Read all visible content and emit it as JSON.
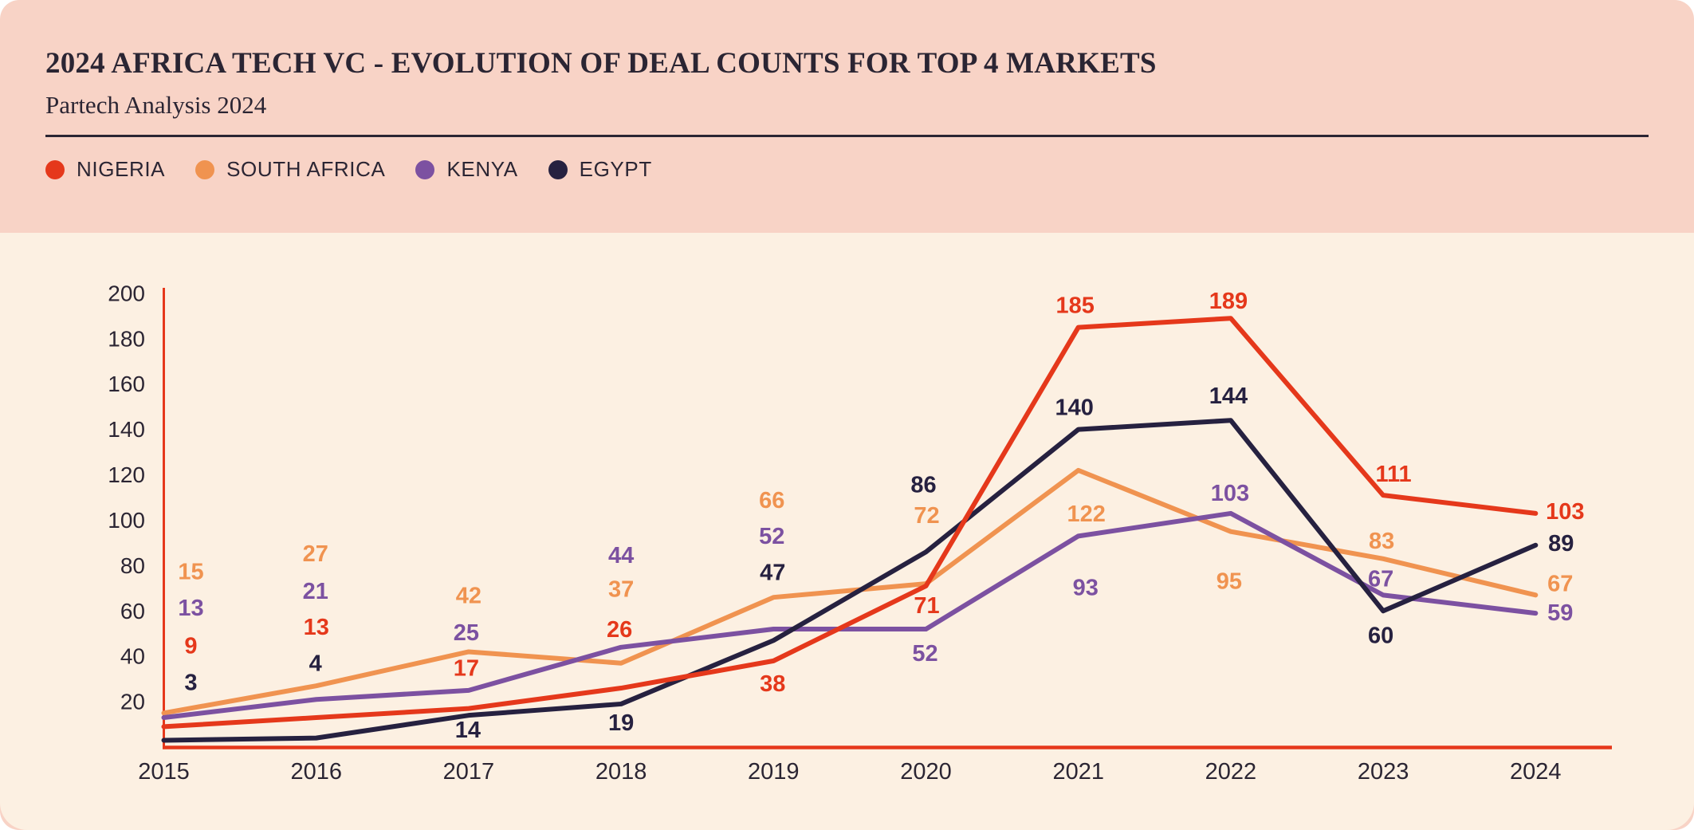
{
  "header": {
    "title": "2024 AFRICA TECH VC - EVOLUTION OF DEAL COUNTS FOR TOP 4 MARKETS",
    "subtitle": "Partech Analysis 2024"
  },
  "legend": [
    {
      "label": "NIGERIA",
      "color": "#e5381b"
    },
    {
      "label": "SOUTH AFRICA",
      "color": "#f09350"
    },
    {
      "label": "KENYA",
      "color": "#7c51a1"
    },
    {
      "label": "EGYPT",
      "color": "#262140"
    }
  ],
  "colors": {
    "card_background": "#f8d3c6",
    "chart_background": "#fcf0e2",
    "axis": "#e5381b",
    "text": "#2b2533",
    "rule": "#2b2533"
  },
  "chart_data": {
    "type": "line",
    "title": "2024 AFRICA TECH VC - EVOLUTION OF DEAL COUNTS FOR TOP 4 MARKETS",
    "subtitle": "Partech Analysis 2024",
    "x": [
      2015,
      2016,
      2017,
      2018,
      2019,
      2020,
      2021,
      2022,
      2023,
      2024
    ],
    "series": [
      {
        "name": "NIGERIA",
        "color": "#e5381b",
        "values": [
          9,
          13,
          17,
          26,
          38,
          71,
          185,
          189,
          111,
          103
        ]
      },
      {
        "name": "SOUTH AFRICA",
        "color": "#f09350",
        "values": [
          15,
          27,
          42,
          37,
          66,
          72,
          122,
          95,
          83,
          67
        ]
      },
      {
        "name": "KENYA",
        "color": "#7c51a1",
        "values": [
          13,
          21,
          25,
          44,
          52,
          52,
          93,
          103,
          67,
          59
        ]
      },
      {
        "name": "EGYPT",
        "color": "#262140",
        "values": [
          3,
          4,
          14,
          19,
          47,
          86,
          140,
          144,
          60,
          89
        ]
      }
    ],
    "ylim": [
      0,
      200
    ],
    "yticks": [
      20,
      40,
      60,
      80,
      100,
      120,
      140,
      160,
      180,
      200
    ],
    "grid": false,
    "legend_position": "top",
    "axis_color": "#e5381b",
    "layout_hints": {
      "draw_order": [
        1,
        2,
        3,
        0
      ],
      "label_offsets": {
        "NIGERIA": [
          [
            34,
            -101
          ],
          [
            0,
            -113
          ],
          [
            -3,
            -50
          ],
          [
            -2,
            -73
          ],
          [
            -1,
            29
          ],
          [
            1,
            25
          ],
          [
            -4,
            -27
          ],
          [
            -3,
            -21
          ],
          [
            13,
            -26
          ],
          [
            37,
            -2
          ]
        ],
        "SOUTH AFRICA": [
          [
            34,
            -177
          ],
          [
            -1,
            -165
          ],
          [
            0,
            -70
          ],
          [
            0,
            -92
          ],
          [
            -2,
            -121
          ],
          [
            1,
            -85
          ],
          [
            10,
            55
          ],
          [
            -2,
            63
          ],
          [
            -2,
            -22
          ],
          [
            31,
            -14
          ]
        ],
        "KENYA": [
          [
            34,
            -137
          ],
          [
            -1,
            -135
          ],
          [
            -3,
            -72
          ],
          [
            0,
            -115
          ],
          [
            -2,
            -116
          ],
          [
            -1,
            31
          ],
          [
            9,
            65
          ],
          [
            -1,
            -25
          ],
          [
            -3,
            -20
          ],
          [
            31,
            0
          ]
        ],
        "EGYPT": [
          [
            34,
            -72
          ],
          [
            -1,
            -93
          ],
          [
            -1,
            19
          ],
          [
            0,
            24
          ],
          [
            -1,
            -85
          ],
          [
            -3,
            -84
          ],
          [
            -5,
            -27
          ],
          [
            -3,
            -30
          ],
          [
            -3,
            31
          ],
          [
            32,
            -2
          ]
        ]
      }
    }
  }
}
